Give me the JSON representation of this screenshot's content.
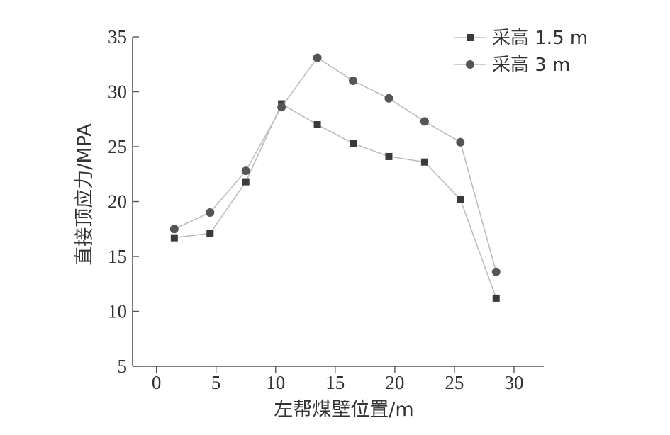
{
  "chart_data": {
    "type": "line",
    "title": "",
    "xlabel": "左帮煤壁位置/m",
    "ylabel": "直接顶应力/MPA",
    "xlim": [
      -2,
      32.5
    ],
    "ylim": [
      5,
      35
    ],
    "x_ticks": [
      0,
      5,
      10,
      15,
      20,
      25,
      30
    ],
    "y_ticks": [
      5,
      10,
      15,
      20,
      25,
      30,
      35
    ],
    "x_tick_labels": [
      "0",
      "5",
      "10",
      "15",
      "20",
      "25",
      "30"
    ],
    "y_tick_labels": [
      "5",
      "10",
      "15",
      "20",
      "25",
      "30",
      "35"
    ],
    "legend_position": "top-right",
    "grid": false,
    "series": [
      {
        "name": "采高 1.5 m",
        "marker": "square",
        "color": "#3a3a3a",
        "line_color": "#bdbdbd",
        "x": [
          1.5,
          4.5,
          7.5,
          10.5,
          13.5,
          16.5,
          19.5,
          22.5,
          25.5,
          28.5
        ],
        "y": [
          16.7,
          17.1,
          21.8,
          28.9,
          27.0,
          25.3,
          24.1,
          23.6,
          20.2,
          11.2
        ]
      },
      {
        "name": "采高 3 m",
        "marker": "circle",
        "color": "#555555",
        "line_color": "#bdbdbd",
        "x": [
          1.5,
          4.5,
          7.5,
          10.5,
          13.5,
          16.5,
          19.5,
          22.5,
          25.5,
          28.5
        ],
        "y": [
          17.5,
          19.0,
          22.8,
          28.6,
          33.1,
          31.0,
          29.4,
          27.3,
          25.4,
          13.6
        ]
      }
    ]
  }
}
